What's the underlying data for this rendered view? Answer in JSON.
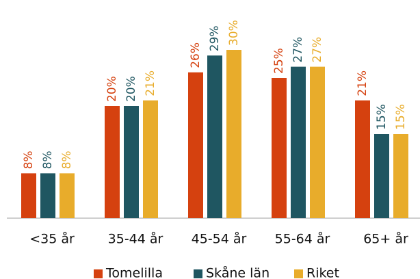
{
  "chart_data": {
    "type": "bar",
    "categories": [
      "<35 år",
      "35-44 år",
      "45-54 år",
      "55-64 år",
      "65+ år"
    ],
    "series": [
      {
        "name": "Tomelilla",
        "color": "#d5410f",
        "values": [
          8,
          20,
          26,
          25,
          21
        ],
        "value_labels": [
          "8%",
          "20%",
          "26%",
          "25%",
          "21%"
        ]
      },
      {
        "name": "Skåne län",
        "color": "#1f5661",
        "values": [
          8,
          20,
          29,
          27,
          15
        ],
        "value_labels": [
          "8%",
          "20%",
          "29%",
          "27%",
          "15%"
        ]
      },
      {
        "name": "Riket",
        "color": "#e8ac2b",
        "values": [
          8,
          21,
          30,
          27,
          15
        ],
        "value_labels": [
          "8%",
          "21%",
          "30%",
          "27%",
          "15%"
        ]
      }
    ],
    "legend": "bottom"
  }
}
